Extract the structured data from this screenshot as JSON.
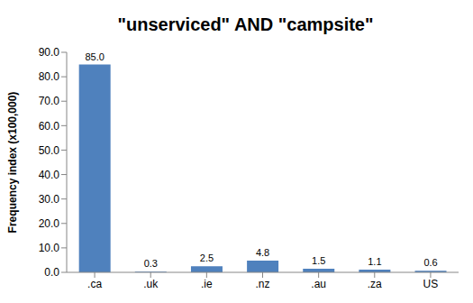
{
  "chart_data": {
    "type": "bar",
    "title": "\"unserviced\" AND \"campsite\"",
    "y_label": "Frequency index (x100,000)",
    "categories": [
      ".ca",
      ".uk",
      ".ie",
      ".nz",
      ".au",
      ".za",
      "US"
    ],
    "values": [
      85.0,
      0.3,
      2.5,
      4.8,
      1.5,
      1.1,
      0.6
    ],
    "value_labels": [
      "85.0",
      "0.3",
      "2.5",
      "4.8",
      "1.5",
      "1.1",
      "0.6"
    ],
    "color": "#4f81bd",
    "ylim": [
      0,
      90
    ],
    "yticks": [
      {
        "value": 0,
        "label": "0.0"
      },
      {
        "value": 10,
        "label": "10.0"
      },
      {
        "value": 20,
        "label": "20.0"
      },
      {
        "value": 30,
        "label": "30.0"
      },
      {
        "value": 40,
        "label": "40.0"
      },
      {
        "value": 50,
        "label": "50.0"
      },
      {
        "value": 60,
        "label": "60.0"
      },
      {
        "value": 70,
        "label": "70.0"
      },
      {
        "value": 80,
        "label": "80.0"
      },
      {
        "value": 90,
        "label": "90.0"
      }
    ],
    "grid": false,
    "data_labels": true
  }
}
